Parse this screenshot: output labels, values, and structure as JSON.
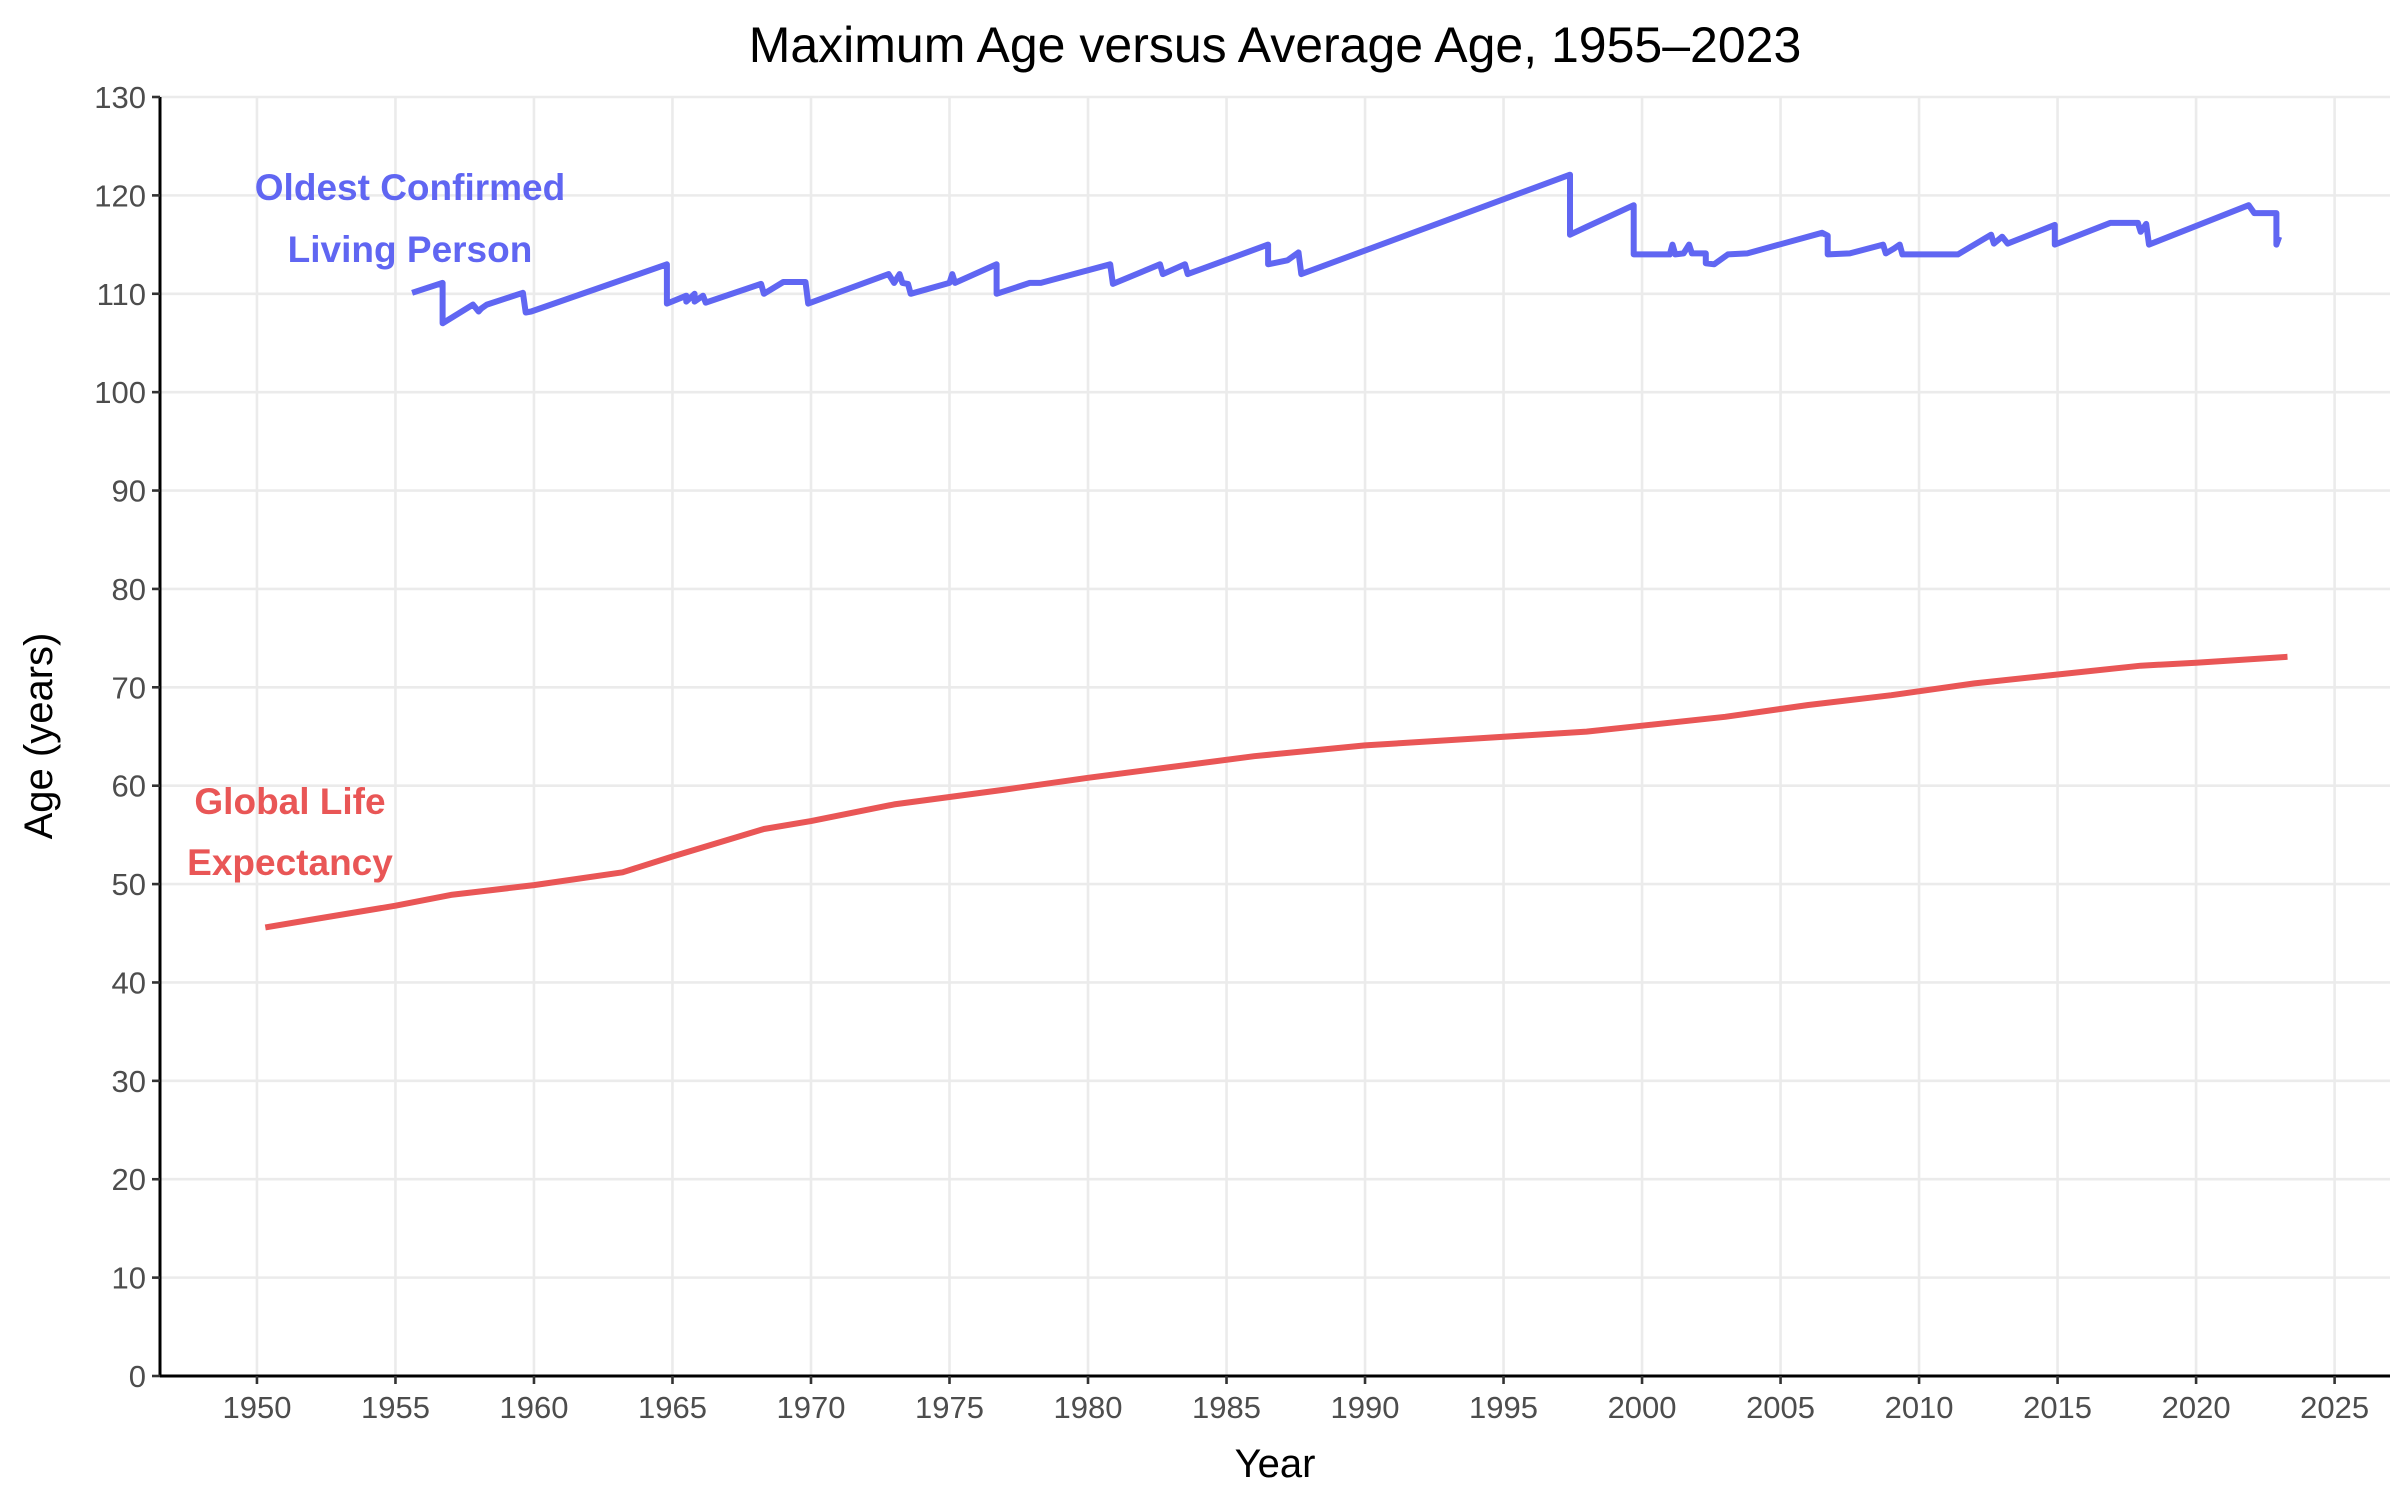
{
  "chart_data": {
    "type": "line",
    "title": "Maximum Age versus Average Age, 1955–2023",
    "xlabel": "Year",
    "ylabel": "Age (years)",
    "xlim": [
      1946.5,
      2027
    ],
    "ylim": [
      0,
      130
    ],
    "x_ticks": [
      1950,
      1955,
      1960,
      1965,
      1970,
      1975,
      1980,
      1985,
      1990,
      1995,
      2000,
      2005,
      2010,
      2015,
      2020,
      2025
    ],
    "y_ticks": [
      0,
      10,
      20,
      30,
      40,
      50,
      60,
      70,
      80,
      90,
      100,
      110,
      120,
      130
    ],
    "grid": true,
    "legend": "none (direct labels)",
    "series": [
      {
        "name": "Oldest Confirmed Living Person",
        "label_lines": [
          "Oldest Confirmed",
          "Living Person"
        ],
        "color": "#6066f2",
        "points": [
          [
            1955.6,
            110.1
          ],
          [
            1956.7,
            111.1
          ],
          [
            1956.7,
            107.0
          ],
          [
            1957.8,
            108.9
          ],
          [
            1958.0,
            108.2
          ],
          [
            1958.1,
            108.5
          ],
          [
            1958.3,
            108.9
          ],
          [
            1959.6,
            110.1
          ],
          [
            1959.7,
            108.1
          ],
          [
            1959.9,
            108.2
          ],
          [
            1964.8,
            113.0
          ],
          [
            1964.8,
            109.0
          ],
          [
            1965.5,
            109.8
          ],
          [
            1965.5,
            109.2
          ],
          [
            1965.8,
            110.0
          ],
          [
            1965.8,
            109.2
          ],
          [
            1966.1,
            109.8
          ],
          [
            1966.2,
            109.1
          ],
          [
            1968.2,
            111.0
          ],
          [
            1968.3,
            110.0
          ],
          [
            1969.0,
            111.2
          ],
          [
            1969.8,
            111.2
          ],
          [
            1969.9,
            109.0
          ],
          [
            1972.8,
            112.0
          ],
          [
            1973.0,
            111.1
          ],
          [
            1973.2,
            112.0
          ],
          [
            1973.3,
            111.1
          ],
          [
            1973.5,
            111.0
          ],
          [
            1973.6,
            110.0
          ],
          [
            1975.0,
            111.1
          ],
          [
            1975.1,
            112.0
          ],
          [
            1975.2,
            111.1
          ],
          [
            1976.7,
            113.0
          ],
          [
            1976.7,
            110.0
          ],
          [
            1977.9,
            111.1
          ],
          [
            1978.3,
            111.1
          ],
          [
            1980.8,
            113.0
          ],
          [
            1980.9,
            111.0
          ],
          [
            1982.6,
            113.0
          ],
          [
            1982.7,
            112.0
          ],
          [
            1983.5,
            113.0
          ],
          [
            1983.6,
            112.0
          ],
          [
            1986.5,
            115.0
          ],
          [
            1986.5,
            113.0
          ],
          [
            1987.2,
            113.4
          ],
          [
            1987.6,
            114.2
          ],
          [
            1987.7,
            112.0
          ],
          [
            1997.4,
            122.1
          ],
          [
            1997.4,
            116.0
          ],
          [
            1998.0,
            116.8
          ],
          [
            1999.7,
            119.0
          ],
          [
            1999.7,
            114.0
          ],
          [
            2001.0,
            114.0
          ],
          [
            2001.1,
            115.0
          ],
          [
            2001.2,
            114.0
          ],
          [
            2001.5,
            114.1
          ],
          [
            2001.7,
            115.0
          ],
          [
            2001.8,
            114.1
          ],
          [
            2002.3,
            114.1
          ],
          [
            2002.3,
            113.1
          ],
          [
            2002.6,
            113.0
          ],
          [
            2003.1,
            114.0
          ],
          [
            2003.8,
            114.1
          ],
          [
            2006.5,
            116.2
          ],
          [
            2006.7,
            115.9
          ],
          [
            2006.7,
            114.0
          ],
          [
            2007.5,
            114.1
          ],
          [
            2008.7,
            115.0
          ],
          [
            2008.8,
            114.1
          ],
          [
            2009.1,
            114.6
          ],
          [
            2009.3,
            115.0
          ],
          [
            2009.4,
            114.0
          ],
          [
            2011.4,
            114.0
          ],
          [
            2012.6,
            116.0
          ],
          [
            2012.7,
            115.1
          ],
          [
            2013.0,
            115.8
          ],
          [
            2013.2,
            115.1
          ],
          [
            2014.9,
            117.0
          ],
          [
            2014.9,
            115.0
          ],
          [
            2016.9,
            117.2
          ],
          [
            2017.9,
            117.2
          ],
          [
            2018.0,
            116.3
          ],
          [
            2018.2,
            117.1
          ],
          [
            2018.3,
            115.0
          ],
          [
            2021.9,
            119.0
          ],
          [
            2022.1,
            118.2
          ],
          [
            2022.9,
            118.2
          ],
          [
            2022.9,
            115.0
          ],
          [
            2023.0,
            115.8
          ]
        ]
      },
      {
        "name": "Global Life Expectancy",
        "label_lines": [
          "Global Life",
          "Expectancy"
        ],
        "color": "#e95656",
        "points": [
          [
            1950.3,
            45.6
          ],
          [
            1952.0,
            46.4
          ],
          [
            1955.0,
            47.8
          ],
          [
            1957.0,
            48.9
          ],
          [
            1960.0,
            49.9
          ],
          [
            1963.2,
            51.2
          ],
          [
            1965.0,
            52.8
          ],
          [
            1968.3,
            55.6
          ],
          [
            1970.0,
            56.4
          ],
          [
            1973.0,
            58.1
          ],
          [
            1977.0,
            59.6
          ],
          [
            1980.0,
            60.8
          ],
          [
            1983.0,
            61.9
          ],
          [
            1986.0,
            63.0
          ],
          [
            1990.0,
            64.1
          ],
          [
            1994.0,
            64.8
          ],
          [
            1998.0,
            65.5
          ],
          [
            2000.0,
            66.1
          ],
          [
            2003.0,
            67.0
          ],
          [
            2006.0,
            68.2
          ],
          [
            2009.0,
            69.2
          ],
          [
            2012.0,
            70.4
          ],
          [
            2015.0,
            71.3
          ],
          [
            2018.0,
            72.2
          ],
          [
            2020.0,
            72.5
          ],
          [
            2023.3,
            73.1
          ]
        ]
      }
    ]
  }
}
